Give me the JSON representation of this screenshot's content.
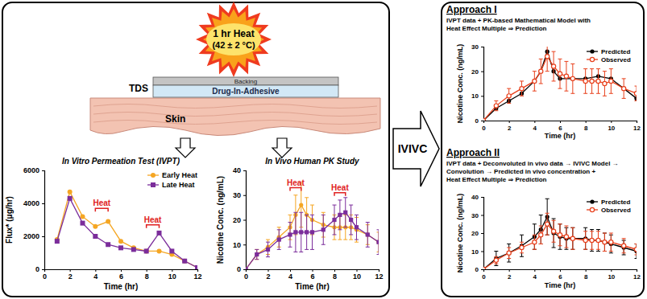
{
  "diagram": {
    "heat": [
      "1 hr Heat",
      "(42 ± 2 °C)"
    ],
    "tds": {
      "label": "TDS",
      "backing": "Backing",
      "adhesive": "Drug-In-Adhesive",
      "skin": "Skin"
    },
    "arrow": "IVIVC",
    "approaches": [
      {
        "title": "Approach I",
        "description": [
          "IVPT data + PK-based Mathematical Model with",
          "Heat Effect Multiple ⇒ Prediction"
        ]
      },
      {
        "title": "Approach II",
        "description": [
          "IVPT data + Deconvoluted in vivo data → IVIVC Model →",
          "Convolution → Predicted in vivo concentration +",
          "Heat Effect Multiple ⇒ Prediction"
        ]
      }
    ]
  },
  "chart_data": [
    {
      "type": "line",
      "title": "In Vitro Permeation Test (IVPT)",
      "x_label": "Time (hr)",
      "y_label": "Flux* (μg/hr)",
      "xlim": [
        0,
        12
      ],
      "ylim": [
        0,
        6000
      ],
      "xticks": [
        0,
        2,
        4,
        6,
        8,
        10,
        12
      ],
      "yticks": [
        0,
        2000,
        4000,
        6000
      ],
      "legend": "upper right",
      "series": [
        {
          "name": "Early Heat",
          "color": "#f5a623",
          "marker": "circle",
          "line_style": "solid",
          "x": [
            1,
            2,
            3,
            4,
            5,
            6,
            7,
            8,
            9,
            10,
            11,
            12
          ],
          "values": [
            1800,
            4700,
            3200,
            2600,
            2900,
            1700,
            1300,
            1100,
            1100,
            900,
            500,
            100
          ]
        },
        {
          "name": "Late Heat",
          "color": "#7b2d9b",
          "marker": "square",
          "line_style": "solid",
          "x": [
            1,
            2,
            3,
            4,
            5,
            6,
            7,
            8,
            9,
            10,
            11,
            12
          ],
          "values": [
            1700,
            4300,
            2800,
            2000,
            1500,
            1300,
            1200,
            1100,
            2200,
            1100,
            500,
            100
          ]
        }
      ],
      "annotations": [
        {
          "text": "Heat",
          "x": [
            4,
            5
          ],
          "y": 3700
        },
        {
          "text": "Heat",
          "x": [
            8,
            9
          ],
          "y": 2700
        }
      ]
    },
    {
      "type": "line",
      "title": "In Vivo Human PK Study",
      "x_label": "Time (hr)",
      "y_label": "Nicotine Conc. (ng/mL)",
      "xlim": [
        0,
        12
      ],
      "ylim": [
        0,
        40
      ],
      "xticks": [
        0,
        2,
        4,
        6,
        8,
        10,
        12
      ],
      "yticks": [
        0,
        10,
        20,
        30,
        40
      ],
      "series": [
        {
          "name": "Early Heat",
          "color": "#f5a623",
          "marker": "circle",
          "line_style": "solid",
          "x": [
            0,
            1,
            2,
            3,
            4,
            4.5,
            5,
            5.5,
            6,
            7,
            8,
            8.5,
            9,
            9.5,
            10,
            11,
            12
          ],
          "values": [
            0,
            6,
            9,
            13,
            17,
            22,
            26,
            22,
            20,
            18,
            17,
            17,
            17,
            17,
            16,
            14,
            11
          ],
          "errors": [
            0,
            2,
            3,
            4,
            5,
            8,
            9,
            7,
            6,
            5,
            5,
            5,
            5,
            5,
            5,
            4,
            4
          ]
        },
        {
          "name": "Late Heat",
          "color": "#7b2d9b",
          "marker": "square",
          "line_style": "solid",
          "x": [
            0,
            1,
            2,
            3,
            4,
            4.5,
            5,
            5.5,
            6,
            7,
            8,
            8.5,
            9,
            9.5,
            10,
            11,
            12
          ],
          "values": [
            0,
            6,
            8,
            12,
            14,
            15,
            15,
            15,
            15,
            16,
            20,
            22,
            23,
            20,
            17,
            14,
            11
          ],
          "errors": [
            0,
            2,
            3,
            4,
            5,
            8,
            8,
            7,
            7,
            6,
            6,
            6,
            6,
            6,
            5,
            5,
            5
          ]
        }
      ],
      "annotations": [
        {
          "text": "Heat",
          "x": [
            4,
            5
          ],
          "y": 33
        },
        {
          "text": "Heat",
          "x": [
            8,
            9
          ],
          "y": 31
        }
      ]
    },
    {
      "type": "line",
      "x_label": "Time (hr)",
      "y_label": "Nicotine Conc. (ng/mL)",
      "xlim": [
        0,
        12
      ],
      "ylim": [
        0,
        30
      ],
      "xticks": [
        0,
        2,
        4,
        6,
        8,
        10,
        12
      ],
      "yticks": [
        0,
        10,
        20,
        30
      ],
      "legend": "upper right",
      "series": [
        {
          "name": "Predicted",
          "color": "#000000",
          "marker": "circle",
          "line_style": "solid",
          "x": [
            0,
            1,
            2,
            3,
            4,
            4.5,
            5,
            5.5,
            6,
            7,
            8,
            9,
            10,
            11,
            12
          ],
          "values": [
            0,
            5,
            8,
            11,
            16,
            20,
            28,
            20,
            17,
            17,
            17,
            18,
            17,
            13,
            9
          ]
        },
        {
          "name": "Observed",
          "color": "#e8401c",
          "marker": "open-circle",
          "line_style": "solid",
          "x": [
            0,
            1,
            2,
            3,
            4,
            4.5,
            5,
            5.5,
            6,
            6.5,
            7,
            8,
            8.5,
            9,
            9.5,
            10,
            11,
            12
          ],
          "values": [
            0,
            6,
            10,
            13,
            16,
            20,
            26,
            22,
            19,
            18,
            17,
            16,
            16,
            16,
            15,
            16,
            13,
            11
          ],
          "errors": [
            0,
            2,
            3,
            3,
            4,
            5,
            6,
            6,
            6,
            6,
            6,
            5,
            5,
            5,
            5,
            5,
            4,
            3
          ]
        }
      ]
    },
    {
      "type": "line",
      "x_label": "Time (hr)",
      "y_label": "Nicotine Conc. (ng/mL)",
      "xlim": [
        0,
        12
      ],
      "ylim": [
        0,
        40
      ],
      "xticks": [
        0,
        2,
        4,
        6,
        8,
        10,
        12
      ],
      "yticks": [
        0,
        10,
        20,
        30,
        40
      ],
      "legend": "upper right",
      "series": [
        {
          "name": "Predicted",
          "color": "#000000",
          "marker": "circle",
          "line_style": "solid",
          "x": [
            0,
            1,
            2,
            3,
            4,
            4.5,
            5,
            5.5,
            6,
            6.5,
            7,
            8,
            8.5,
            9,
            9.5,
            10,
            11,
            12
          ],
          "values": [
            0,
            6,
            9,
            13,
            18,
            22,
            29,
            20,
            18,
            17,
            17,
            17,
            16,
            16,
            15,
            14,
            12,
            10
          ],
          "errors": [
            0,
            4,
            5,
            6,
            7,
            8,
            10,
            8,
            7,
            6,
            6,
            6,
            6,
            6,
            5,
            5,
            4,
            4
          ]
        },
        {
          "name": "Observed",
          "color": "#e8401c",
          "marker": "open-circle",
          "line_style": "solid",
          "x": [
            0,
            1,
            2,
            3,
            4,
            4.5,
            5,
            5.5,
            6,
            6.5,
            7,
            8,
            8.5,
            9,
            9.5,
            10,
            11,
            12
          ],
          "values": [
            0,
            5,
            9,
            12,
            15,
            19,
            25,
            21,
            19,
            18,
            17,
            16,
            16,
            16,
            15,
            15,
            13,
            11
          ],
          "errors": [
            0,
            2,
            3,
            3,
            4,
            5,
            6,
            6,
            6,
            6,
            6,
            5,
            5,
            5,
            5,
            5,
            4,
            3
          ]
        }
      ]
    }
  ]
}
